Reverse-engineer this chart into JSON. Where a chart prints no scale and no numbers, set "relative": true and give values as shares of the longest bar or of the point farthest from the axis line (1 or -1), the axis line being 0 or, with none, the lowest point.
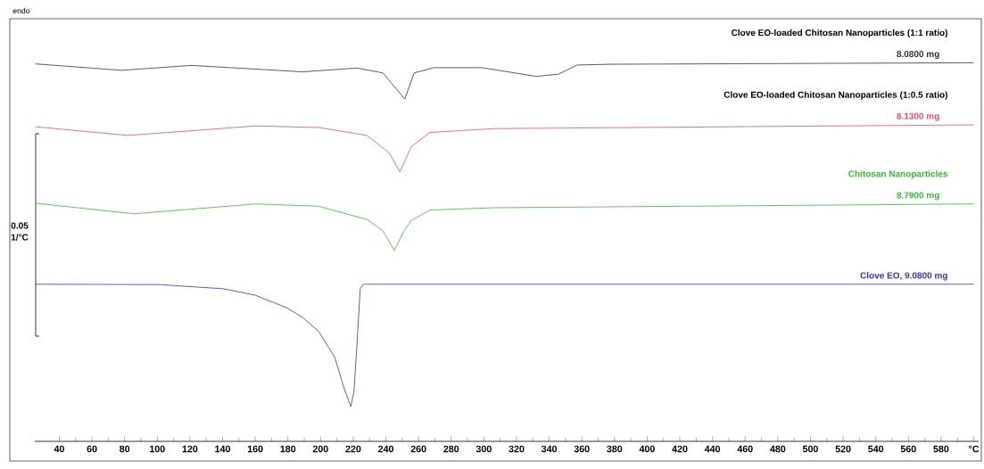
{
  "chart_data": {
    "type": "line",
    "relative": true,
    "xlim": [
      25,
      603
    ],
    "xticks": [
      40,
      60,
      80,
      100,
      120,
      140,
      160,
      180,
      200,
      220,
      240,
      260,
      280,
      300,
      320,
      340,
      360,
      380,
      400,
      420,
      440,
      460,
      480,
      500,
      520,
      540,
      560,
      580,
      {
        "value": 600,
        "label": "°C"
      }
    ],
    "series": [
      {
        "name": "Clove EO-loaded Chitosan Nanoparticles (1:1 ratio)",
        "color": "#333333",
        "x": [
          25.3,
          78.2,
          120.8,
          189.1,
          222.4,
          238.2,
          251.6,
          257.3,
          269.3,
          298.8,
          332.1,
          345.8,
          357.2,
          376.9,
          600
        ],
        "values": [
          0.997,
          0.98,
          0.993,
          0.976,
          0.986,
          0.973,
          0.904,
          0.973,
          0.987,
          0.987,
          0.964,
          0.97,
          0.994,
          0.996,
          1.0
        ]
      },
      {
        "name": "Clove EO-loaded Chitosan Nanoparticles (1:0.5 ratio)",
        "color": "#e8505a",
        "x": [
          25.3,
          82.0,
          160.1,
          198.9,
          228.4,
          242.0,
          248.6,
          255.7,
          267.1,
          306.4,
          600
        ],
        "values": [
          0.831,
          0.808,
          0.833,
          0.829,
          0.808,
          0.762,
          0.712,
          0.779,
          0.816,
          0.826,
          0.836
        ]
      },
      {
        "name": "Chitosan Nanoparticles",
        "color": "#33bb33",
        "x": [
          25.3,
          85.9,
          160.1,
          198.9,
          228.4,
          238.2,
          245.2,
          250.8,
          255.7,
          267.1,
          306.2,
          600
        ],
        "values": [
          0.629,
          0.601,
          0.627,
          0.621,
          0.586,
          0.556,
          0.504,
          0.554,
          0.584,
          0.611,
          0.617,
          0.627
        ]
      },
      {
        "name": "Clove EO, 9.0800 mg",
        "color": "#3333cc",
        "x": [
          25.3,
          101.5,
          140.5,
          160.0,
          179.2,
          189.1,
          198.9,
          208.7,
          214.6,
          218.5,
          220.4,
          222.4,
          224.3,
          226.2,
          600
        ],
        "values": [
          0.415,
          0.414,
          0.403,
          0.386,
          0.353,
          0.327,
          0.29,
          0.222,
          0.138,
          0.092,
          0.129,
          0.264,
          0.403,
          0.415,
          0.415
        ]
      }
    ],
    "annotations": [
      "endo",
      "0.05",
      "1/°C",
      "8.0800 mg",
      "8.1300 mg",
      "8.7900 mg"
    ]
  }
}
